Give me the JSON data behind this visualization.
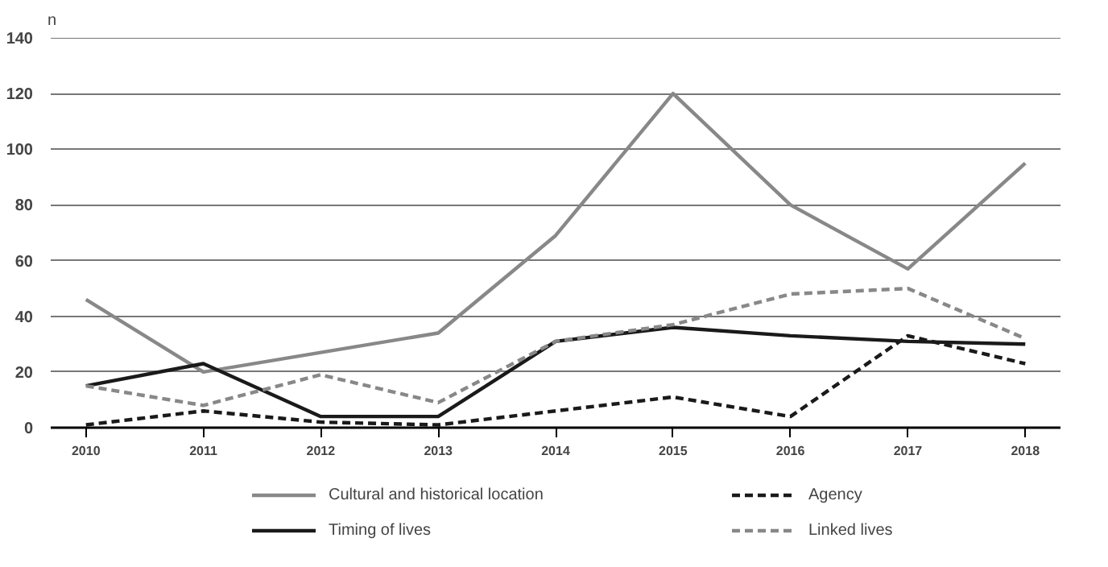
{
  "chart_data": {
    "type": "line",
    "ylabel": "n",
    "categories": [
      "2010",
      "2011",
      "2012",
      "2013",
      "2014",
      "2015",
      "2016",
      "2017",
      "2018"
    ],
    "ylim": [
      0,
      140
    ],
    "yticks": [
      0,
      20,
      40,
      60,
      80,
      100,
      120,
      140
    ],
    "grid": "y",
    "legend": "bottom",
    "marker": "none",
    "series": [
      {
        "name": "Cultural and historical location",
        "color": "#888888",
        "line_style": "solid",
        "values": [
          46,
          20,
          27,
          34,
          69,
          120,
          80,
          57,
          95
        ]
      },
      {
        "name": "Agency",
        "color": "#1a1a1a",
        "line_style": "dashed",
        "values": [
          1,
          6,
          2,
          1,
          6,
          11,
          4,
          33,
          23
        ]
      },
      {
        "name": "Timing of lives",
        "color": "#1a1a1a",
        "line_style": "solid",
        "values": [
          15,
          23,
          4,
          4,
          31,
          36,
          33,
          31,
          30
        ]
      },
      {
        "name": "Linked lives",
        "color": "#888888",
        "line_style": "dashed",
        "values": [
          15,
          8,
          19,
          9,
          31,
          37,
          48,
          50,
          32
        ]
      }
    ]
  }
}
